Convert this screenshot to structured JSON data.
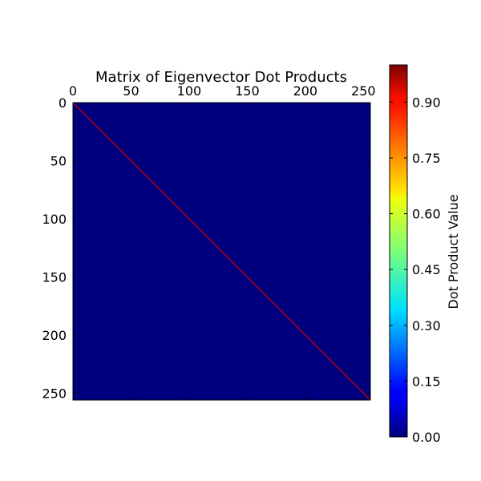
{
  "chart_data": {
    "type": "heatmap",
    "title": "Matrix of Eigenvector Dot Products",
    "matrix_size": 256,
    "description_values": "identity-like matrix: 1.0 on the diagonal, 0.0 elsewhere",
    "diagonal_value": 1.0,
    "off_diagonal_value": 0.0,
    "x_ticks": [
      0,
      50,
      100,
      150,
      200,
      250
    ],
    "y_ticks": [
      0,
      50,
      100,
      150,
      200,
      250
    ],
    "x_tick_labels": [
      "0",
      "50",
      "100",
      "150",
      "200",
      "250"
    ],
    "y_tick_labels": [
      "0",
      "50",
      "100",
      "150",
      "200",
      "250"
    ],
    "xlim": [
      0,
      256
    ],
    "ylim": [
      0,
      256
    ],
    "x_axis_position": "top",
    "grid": false,
    "colormap": "jet",
    "colorbar": {
      "label": "Dot Product Value",
      "range": [
        0.0,
        1.0
      ],
      "ticks": [
        0.0,
        0.15,
        0.3,
        0.45,
        0.6,
        0.75,
        0.9
      ],
      "tick_labels": [
        "0.00",
        "0.15",
        "0.30",
        "0.45",
        "0.60",
        "0.75",
        "0.90"
      ]
    },
    "colors": {
      "background_value_color": "#00007f",
      "diagonal_color": "#b30000"
    }
  }
}
